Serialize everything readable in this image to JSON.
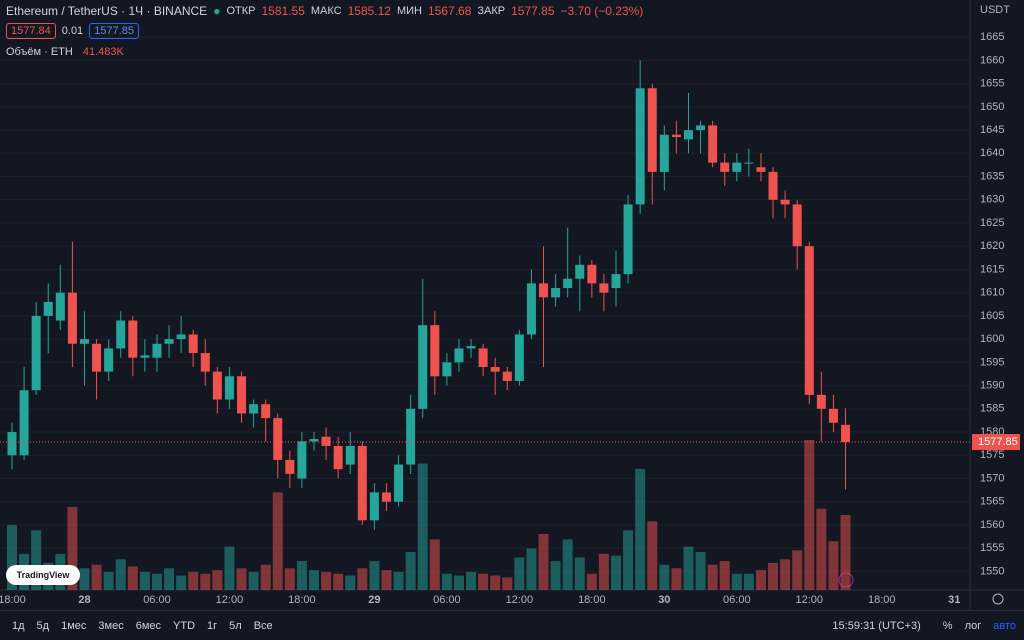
{
  "header": {
    "symbol": "Ethereum / TetherUS · 1Ч · BINANCE",
    "open_label": "ОТКР",
    "high_label": "МАКС",
    "low_label": "МИН",
    "close_label": "ЗАКР",
    "change": "−3.70 (−0.23%)",
    "bid": "1577.84",
    "spread": "0.01",
    "ask": "1577.85"
  },
  "logo": "TradingView",
  "chart_data": {
    "type": "candlestick",
    "currency": "USDT",
    "categories": [
      "18:00",
      null,
      null,
      null,
      null,
      null,
      "28",
      null,
      null,
      null,
      null,
      null,
      "06:00",
      null,
      null,
      null,
      null,
      null,
      "12:00",
      null,
      null,
      null,
      null,
      null,
      "18:00",
      null,
      null,
      null,
      null,
      null,
      "29",
      null,
      null,
      null,
      null,
      null,
      "06:00",
      null,
      null,
      null,
      null,
      null,
      "12:00",
      null,
      null,
      null,
      null,
      null,
      "18:00",
      null,
      null,
      null,
      null,
      null,
      "30",
      null,
      null,
      null,
      null,
      null,
      "06:00",
      null,
      null,
      null,
      null,
      null,
      "12:00",
      null,
      null,
      null,
      null,
      null,
      "18:00",
      null,
      null,
      null,
      null,
      null,
      "31"
    ],
    "open": [
      1575,
      1575,
      1589,
      1605,
      1604,
      1610,
      1599,
      1599,
      1593,
      1598,
      1604,
      1596,
      1596,
      1599,
      1600,
      1601,
      1597,
      1593,
      1587,
      1592,
      1584,
      1586,
      1583,
      1574,
      1570,
      1578,
      1579,
      1577,
      1573,
      1577,
      1561,
      1567,
      1565,
      1573,
      1585,
      1603,
      1592,
      1595,
      1598,
      1598,
      1594,
      1593,
      1591,
      1601,
      1612,
      1609,
      1611,
      1613,
      1616,
      1612,
      1611,
      1614,
      1629,
      1654,
      1636,
      1644,
      1643,
      1645,
      1646,
      1638,
      1636,
      1638,
      1637,
      1636,
      1630,
      1629,
      1620,
      1588,
      1585,
      1581.55,
      null,
      null,
      null,
      null,
      null,
      null,
      null,
      null,
      null
    ],
    "high": [
      1582,
      1594,
      1608,
      1612,
      1616,
      1621,
      1606,
      1600,
      1600,
      1606,
      1605,
      1600,
      1601,
      1603,
      1605,
      1602,
      1600,
      1594,
      1594,
      1593,
      1587,
      1587,
      1584,
      1576,
      1580,
      1580,
      1581,
      1579,
      1580,
      1578,
      1569,
      1569,
      1575,
      1588,
      1613,
      1606,
      1597,
      1600,
      1600,
      1599,
      1596,
      1594,
      1602,
      1615,
      1620,
      1614,
      1624,
      1618,
      1617,
      1614,
      1619,
      1631,
      1660,
      1655,
      1646,
      1647,
      1653,
      1647,
      1647,
      1640,
      1640,
      1641,
      1640,
      1637,
      1632,
      1630,
      1621,
      1593,
      1588,
      1585.12,
      null,
      null,
      null,
      null,
      null,
      null,
      null,
      null,
      null
    ],
    "low": [
      1572,
      1574,
      1588,
      1597,
      1602,
      1594,
      1590,
      1587,
      1591,
      1596,
      1592,
      1593,
      1593,
      1596,
      1597,
      1594,
      1590,
      1584,
      1585,
      1582,
      1581,
      1578,
      1570,
      1568,
      1568,
      1576,
      1574,
      1570,
      1571,
      1560,
      1559,
      1563,
      1564,
      1571,
      1583,
      1588,
      1590,
      1593,
      1596,
      1592,
      1588,
      1589,
      1590,
      1600,
      1594,
      1607,
      1609,
      1606,
      1609,
      1606,
      1607,
      1612,
      1627,
      1629,
      1632,
      1640,
      1640,
      1640,
      1637,
      1633,
      1634,
      1635,
      1634,
      1626,
      1626,
      1615,
      1586,
      1578,
      1580,
      1567.68,
      null,
      null,
      null,
      null,
      null,
      null,
      null,
      null,
      null
    ],
    "close": [
      1580,
      1589,
      1605,
      1608,
      1610,
      1599,
      1600,
      1593,
      1598,
      1604,
      1596,
      1596.5,
      1599,
      1600,
      1601,
      1597,
      1593,
      1587,
      1592,
      1584,
      1586,
      1583,
      1574,
      1571,
      1578,
      1578.5,
      1577,
      1572,
      1577,
      1561,
      1567,
      1565,
      1573,
      1585,
      1603,
      1592,
      1595,
      1598,
      1598.5,
      1594,
      1593,
      1591,
      1601,
      1612,
      1609,
      1611,
      1613,
      1616,
      1612,
      1610,
      1614,
      1629,
      1654,
      1636,
      1644,
      1643.5,
      1645,
      1646,
      1638,
      1636,
      1638,
      1638,
      1636,
      1630,
      1629,
      1620,
      1588,
      1585,
      1582,
      1577.85,
      null,
      null,
      null,
      null,
      null,
      null,
      null,
      null,
      null
    ],
    "volume": {
      "name": "Объём · ETH",
      "last_label": "41.483K",
      "values": [
        36000,
        20000,
        33000,
        15000,
        20000,
        46000,
        12000,
        14000,
        10000,
        17000,
        13000,
        10000,
        9000,
        12000,
        8000,
        10000,
        9000,
        11000,
        24000,
        12000,
        10000,
        14000,
        54000,
        12000,
        16000,
        11000,
        10000,
        9000,
        8000,
        12000,
        16000,
        11000,
        10000,
        21000,
        70000,
        28000,
        9000,
        8000,
        10000,
        9000,
        8000,
        7000,
        18000,
        23000,
        31000,
        16000,
        28000,
        18000,
        9000,
        20000,
        19000,
        33000,
        67000,
        38000,
        14000,
        12000,
        24000,
        21000,
        14000,
        16000,
        9000,
        9000,
        11000,
        15000,
        17000,
        22000,
        83000,
        45000,
        27000,
        41483,
        null,
        null,
        null,
        null,
        null,
        null,
        null,
        null,
        null
      ]
    },
    "up_color": "#26a69a",
    "down_color": "#ef5350",
    "ylim": [
      1546,
      1673
    ],
    "yticks": [
      1550,
      1555,
      1560,
      1565,
      1570,
      1575,
      1580,
      1585,
      1590,
      1595,
      1600,
      1605,
      1610,
      1615,
      1620,
      1625,
      1630,
      1635,
      1640,
      1645,
      1650,
      1655,
      1660,
      1665
    ],
    "grid": true
  },
  "toolbar": {
    "ranges": [
      "1д",
      "5д",
      "1мес",
      "3мес",
      "6мес",
      "YTD",
      "1г",
      "5л",
      "Все"
    ],
    "clock": "15:59:31 (UTC+3)",
    "percent": "%",
    "log": "лог",
    "auto": "авто"
  }
}
